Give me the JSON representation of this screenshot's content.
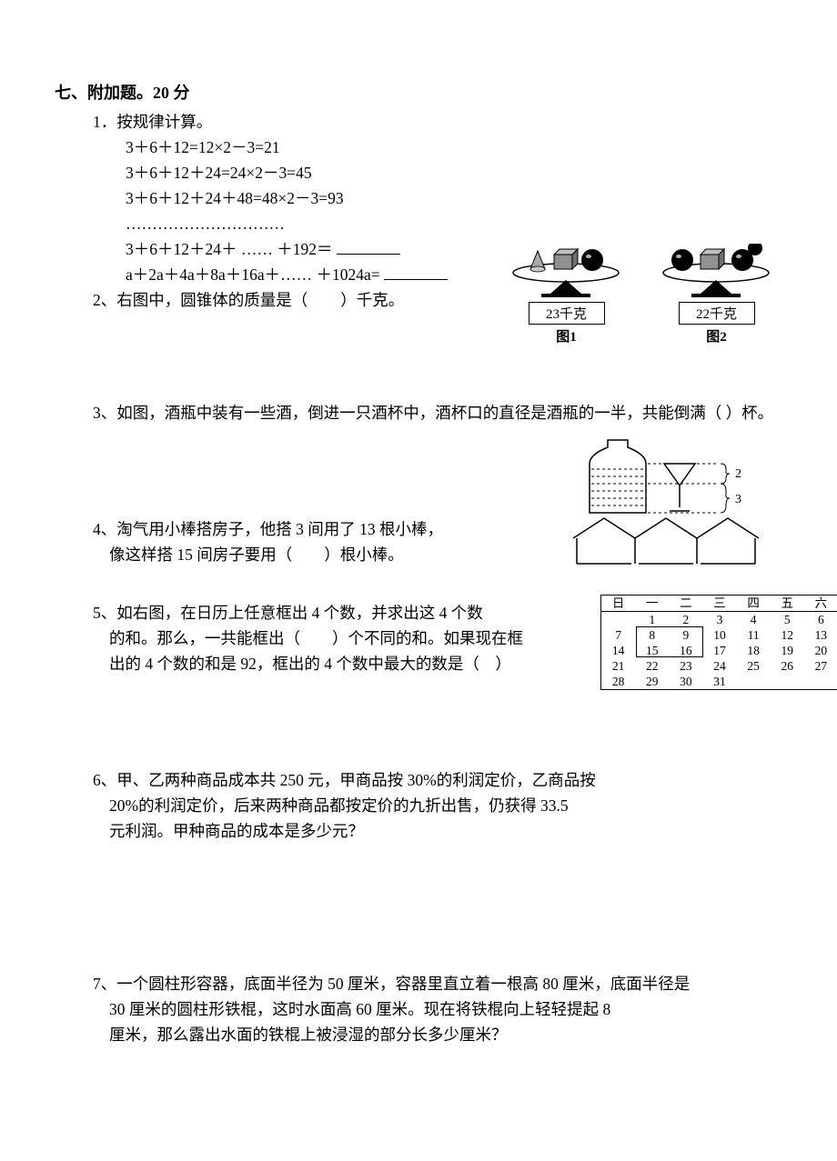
{
  "section": {
    "title": "七、附加题。20 分"
  },
  "q1": {
    "stem": "1．按规律计算。",
    "line1": "3＋6＋12=12×2－3=21",
    "line2": "3＋6＋12＋24=24×2－3=45",
    "line3": "3＋6＋12＋24＋48=48×2－3=93",
    "dots": "…………………………",
    "line5a": "3＋6＋12＋24＋ …… ＋192＝",
    "line6a": "a＋2a＋4a＋8a＋16a＋…… ＋1024a="
  },
  "q2": {
    "stem_a": "2、右图中，圆锥体的质量是（",
    "stem_b": "）千克。",
    "fig1": {
      "label": "23千克",
      "caption": "图1"
    },
    "fig2": {
      "label": "22千克",
      "caption": "图2"
    }
  },
  "q3": {
    "text": "3、如图，酒瓶中装有一些酒，倒进一只酒杯中，酒杯口的直径是酒瓶的一半，共能倒满（  ）杯。",
    "brace_top": "2",
    "brace_bottom": "3"
  },
  "q4": {
    "line1": "4、淘气用小棒搭房子，他搭 3 间用了 13 根小棒，",
    "line2": "像这样搭 15 间房子要用（　　）根小棒。"
  },
  "q5": {
    "line1": "5、如右图，在日历上任意框出 4 个数，并求出这 4 个数",
    "line2": "的和。那么，一共能框出（　　）个不同的和。如果现在框",
    "line3": "出的 4 个数的和是 92，框出的 4 个数中最大的数是（　）",
    "calendar": {
      "headers": [
        "日",
        "一",
        "二",
        "三",
        "四",
        "五",
        "六"
      ],
      "rows": [
        [
          "",
          "1",
          "2",
          "3",
          "4",
          "5",
          "6"
        ],
        [
          "7",
          "8",
          "9",
          "10",
          "11",
          "12",
          "13"
        ],
        [
          "14",
          "15",
          "16",
          "17",
          "18",
          "19",
          "20"
        ],
        [
          "21",
          "22",
          "23",
          "24",
          "25",
          "26",
          "27"
        ],
        [
          "28",
          "29",
          "30",
          "31",
          "",
          "",
          ""
        ]
      ],
      "frame": {
        "top_row": 1,
        "left_col": 1,
        "rows": 2,
        "cols": 2
      }
    }
  },
  "q6": {
    "line1": "6、甲、乙两种商品成本共 250 元，甲商品按 30%的利润定价，乙商品按",
    "line2": "20%的利润定价，后来两种商品都按定价的九折出售，仍获得 33.5",
    "line3": "元利润。甲种商品的成本是多少元？"
  },
  "q7": {
    "line1": "7、一个圆柱形容器，底面半径为 50 厘米，容器里直立着一根高 80 厘米，底面半径是",
    "line2": "30 厘米的圆柱形铁棍，这时水面高 60 厘米。现在将铁棍向上轻轻提起 8",
    "line3": "厘米，那么露出水面的铁棍上被浸湿的部分长多少厘米？"
  },
  "colors": {
    "text": "#000000",
    "bg": "#ffffff"
  }
}
